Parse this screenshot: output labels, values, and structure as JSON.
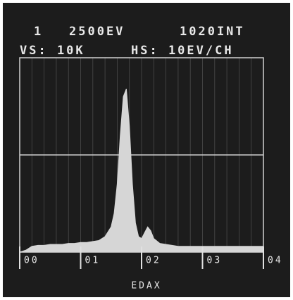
{
  "chart_data": {
    "type": "area",
    "annotations": [
      "1",
      "2500EV",
      "1020INT",
      "VS: 10K",
      "HS: 10EV/CH"
    ],
    "xlabel": "EDAX",
    "x": [
      0,
      0.1,
      0.2,
      0.3,
      0.4,
      0.5,
      0.6,
      0.7,
      0.8,
      0.9,
      1.0,
      1.1,
      1.2,
      1.3,
      1.4,
      1.5,
      1.55,
      1.6,
      1.65,
      1.7,
      1.75,
      1.8,
      1.85,
      1.9,
      1.95,
      2.0,
      2.05,
      2.1,
      2.15,
      2.2,
      2.3,
      2.4,
      2.5,
      2.6,
      2.8,
      3.0,
      3.2,
      3.4,
      3.6,
      3.8,
      4.0
    ],
    "values": [
      0,
      100,
      300,
      350,
      350,
      400,
      400,
      400,
      450,
      450,
      500,
      500,
      550,
      600,
      800,
      1300,
      2000,
      3500,
      6000,
      8000,
      8400,
      6500,
      3500,
      1500,
      800,
      700,
      1000,
      1300,
      1100,
      700,
      450,
      400,
      350,
      300,
      300,
      300,
      300,
      300,
      300,
      300,
      300
    ],
    "color": "#d6d6d6",
    "xlim": [
      0,
      4
    ],
    "ylim": [
      0,
      10000
    ],
    "xticks": [
      {
        "value": 0,
        "label": "00"
      },
      {
        "value": 1,
        "label": "01"
      },
      {
        "value": 2,
        "label": "02"
      },
      {
        "value": 3,
        "label": "03"
      },
      {
        "value": 4,
        "label": "04"
      }
    ]
  }
}
